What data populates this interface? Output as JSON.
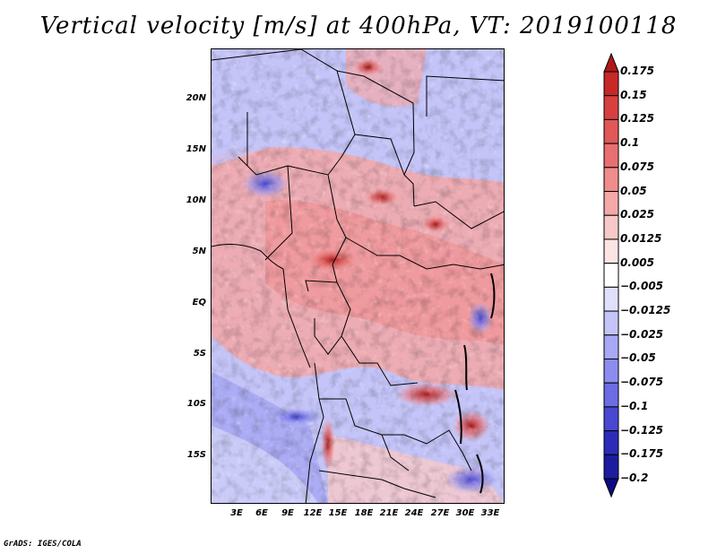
{
  "title": "Vertical velocity [m/s] at 400hPa, VT: 2019100118",
  "footer": "GrADS: IGES/COLA",
  "lat_labels": [
    "20N",
    "15N",
    "10N",
    "5N",
    "EQ",
    "5S",
    "10S",
    "15S"
  ],
  "lon_labels": [
    "3E",
    "6E",
    "9E",
    "12E",
    "15E",
    "18E",
    "21E",
    "24E",
    "27E",
    "30E",
    "33E"
  ],
  "colorbar": {
    "labels": [
      "0.175",
      "0.15",
      "0.125",
      "0.1",
      "0.075",
      "0.05",
      "0.025",
      "0.0125",
      "0.005",
      "−0.005",
      "−0.0125",
      "−0.025",
      "−0.05",
      "−0.075",
      "−0.1",
      "−0.125",
      "−0.175",
      "−0.2"
    ],
    "colors": [
      "#b01818",
      "#c82828",
      "#d84040",
      "#e05858",
      "#e87070",
      "#f08c8c",
      "#f4a8a8",
      "#f8c8c8",
      "#fce4e4",
      "#ffffff",
      "#e0e0fc",
      "#c4c4f8",
      "#a8a8f4",
      "#8c8cf0",
      "#6c6ce4",
      "#4848d0",
      "#2c2cb8",
      "#1c1ca0",
      "#0c0c80"
    ]
  }
}
